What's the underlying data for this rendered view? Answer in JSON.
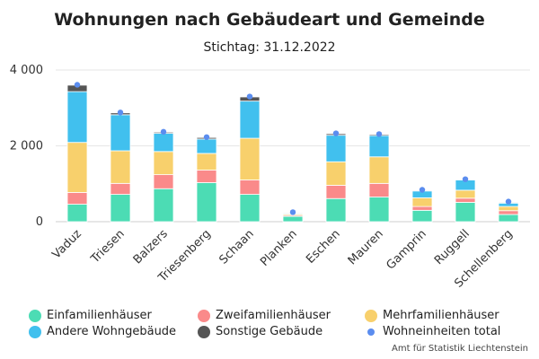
{
  "chart_data": {
    "type": "bar",
    "title": "Wohnungen nach Gebäudeart und Gemeinde",
    "subtitle": "Stichtag: 31.12.2022",
    "ylim": [
      0,
      4000
    ],
    "yticks": [
      "0",
      "2 000",
      "4 000"
    ],
    "ytick_values": [
      0,
      2000,
      4000
    ],
    "categories": [
      "Vaduz",
      "Triesen",
      "Balzers",
      "Triesenberg",
      "Schaan",
      "Planken",
      "Eschen",
      "Mauren",
      "Gamprin",
      "Ruggell",
      "Schellenberg"
    ],
    "series": [
      {
        "name": "Einfamilienhäuser",
        "color": "#4cdcb4",
        "values": [
          460,
          720,
          870,
          1030,
          720,
          140,
          610,
          650,
          300,
          510,
          190
        ]
      },
      {
        "name": "Zweifamilienhäuser",
        "color": "#fa8a8a",
        "values": [
          310,
          290,
          370,
          330,
          380,
          30,
          350,
          360,
          100,
          110,
          100
        ]
      },
      {
        "name": "Mehrfamilienhäuser",
        "color": "#f8d06c",
        "values": [
          1320,
          860,
          610,
          440,
          1100,
          30,
          620,
          700,
          230,
          210,
          110
        ]
      },
      {
        "name": "Andere Wohngebäude",
        "color": "#41c0ee",
        "values": [
          1340,
          950,
          480,
          380,
          980,
          20,
          700,
          560,
          180,
          270,
          90
        ]
      },
      {
        "name": "Sonstige Gebäude",
        "color": "#555555",
        "values": [
          170,
          50,
          30,
          40,
          110,
          20,
          40,
          30,
          20,
          10,
          20
        ]
      }
    ],
    "total": {
      "name": "Wohneinheiten total",
      "color": "#5b8def",
      "values": [
        3610,
        2880,
        2370,
        2230,
        3300,
        250,
        2330,
        2310,
        840,
        1120,
        530
      ]
    },
    "grid": true,
    "legend_position": "bottom"
  },
  "source": "Amt für Statistik Liechtenstein"
}
